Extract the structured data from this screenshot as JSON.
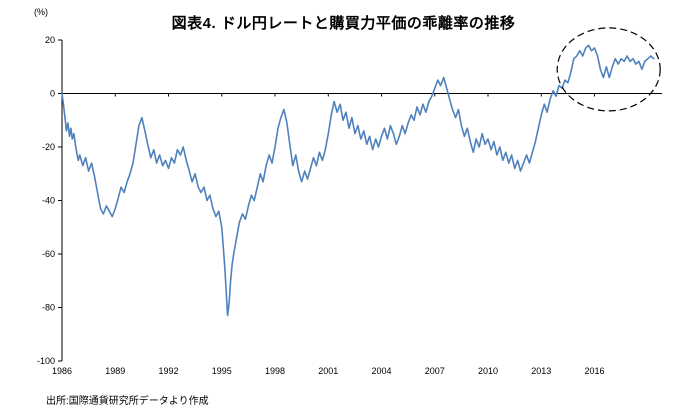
{
  "title": "図表4. ドル円レートと購買力平価の乖離率の推移",
  "y_axis_unit": "(%)",
  "source": "出所:国際通貨研究所データより作成",
  "chart_data": {
    "type": "line",
    "title": "図表4. ドル円レートと購買力平価の乖離率の推移",
    "series_name": "ドル円レートと購買力平価の乖離率",
    "ylabel": "(%)",
    "xlabel": "",
    "ylim": [
      -100,
      20
    ],
    "xlim": [
      1986,
      2019.8
    ],
    "y_ticks": [
      20,
      0,
      -20,
      -40,
      -60,
      -80,
      -100
    ],
    "x_ticks": [
      1986,
      1989,
      1992,
      1995,
      1998,
      2001,
      2004,
      2007,
      2010,
      2013,
      2016
    ],
    "grid": false,
    "legend": "none",
    "line_color": "#4F81BD",
    "annotation": {
      "type": "dashed-ellipse",
      "cx": 2016.8,
      "cy": 9,
      "rx": 2.9,
      "ry": 15.5
    },
    "points": [
      [
        1986.0,
        0
      ],
      [
        1986.08,
        -4
      ],
      [
        1986.17,
        -9
      ],
      [
        1986.25,
        -14
      ],
      [
        1986.33,
        -11
      ],
      [
        1986.42,
        -16
      ],
      [
        1986.5,
        -13
      ],
      [
        1986.58,
        -17
      ],
      [
        1986.67,
        -15
      ],
      [
        1986.75,
        -19
      ],
      [
        1986.83,
        -22
      ],
      [
        1986.92,
        -25
      ],
      [
        1987.0,
        -23
      ],
      [
        1987.17,
        -27
      ],
      [
        1987.33,
        -24
      ],
      [
        1987.5,
        -29
      ],
      [
        1987.67,
        -26
      ],
      [
        1987.83,
        -31
      ],
      [
        1988.0,
        -37
      ],
      [
        1988.17,
        -43
      ],
      [
        1988.33,
        -45
      ],
      [
        1988.5,
        -42
      ],
      [
        1988.67,
        -44
      ],
      [
        1988.83,
        -46
      ],
      [
        1989.0,
        -43
      ],
      [
        1989.17,
        -39
      ],
      [
        1989.33,
        -35
      ],
      [
        1989.5,
        -37
      ],
      [
        1989.67,
        -33
      ],
      [
        1989.83,
        -30
      ],
      [
        1990.0,
        -26
      ],
      [
        1990.17,
        -19
      ],
      [
        1990.33,
        -12
      ],
      [
        1990.5,
        -9
      ],
      [
        1990.67,
        -14
      ],
      [
        1990.83,
        -19
      ],
      [
        1991.0,
        -24
      ],
      [
        1991.17,
        -21
      ],
      [
        1991.33,
        -26
      ],
      [
        1991.5,
        -23
      ],
      [
        1991.67,
        -27
      ],
      [
        1991.83,
        -25
      ],
      [
        1992.0,
        -28
      ],
      [
        1992.17,
        -24
      ],
      [
        1992.33,
        -26
      ],
      [
        1992.5,
        -21
      ],
      [
        1992.67,
        -23
      ],
      [
        1992.83,
        -20
      ],
      [
        1993.0,
        -25
      ],
      [
        1993.17,
        -29
      ],
      [
        1993.33,
        -33
      ],
      [
        1993.5,
        -30
      ],
      [
        1993.67,
        -35
      ],
      [
        1993.83,
        -37
      ],
      [
        1994.0,
        -35
      ],
      [
        1994.17,
        -40
      ],
      [
        1994.33,
        -38
      ],
      [
        1994.5,
        -43
      ],
      [
        1994.67,
        -46
      ],
      [
        1994.83,
        -44
      ],
      [
        1995.0,
        -50
      ],
      [
        1995.08,
        -57
      ],
      [
        1995.17,
        -65
      ],
      [
        1995.25,
        -74
      ],
      [
        1995.33,
        -83
      ],
      [
        1995.42,
        -78
      ],
      [
        1995.5,
        -70
      ],
      [
        1995.58,
        -64
      ],
      [
        1995.67,
        -60
      ],
      [
        1995.83,
        -54
      ],
      [
        1996.0,
        -48
      ],
      [
        1996.17,
        -45
      ],
      [
        1996.33,
        -47
      ],
      [
        1996.5,
        -42
      ],
      [
        1996.67,
        -38
      ],
      [
        1996.83,
        -40
      ],
      [
        1997.0,
        -35
      ],
      [
        1997.17,
        -30
      ],
      [
        1997.33,
        -33
      ],
      [
        1997.5,
        -27
      ],
      [
        1997.67,
        -23
      ],
      [
        1997.83,
        -26
      ],
      [
        1998.0,
        -20
      ],
      [
        1998.17,
        -13
      ],
      [
        1998.33,
        -9
      ],
      [
        1998.5,
        -6
      ],
      [
        1998.67,
        -11
      ],
      [
        1998.83,
        -19
      ],
      [
        1999.0,
        -27
      ],
      [
        1999.17,
        -23
      ],
      [
        1999.33,
        -29
      ],
      [
        1999.5,
        -33
      ],
      [
        1999.67,
        -29
      ],
      [
        1999.83,
        -32
      ],
      [
        2000.0,
        -28
      ],
      [
        2000.17,
        -24
      ],
      [
        2000.33,
        -27
      ],
      [
        2000.5,
        -22
      ],
      [
        2000.67,
        -25
      ],
      [
        2000.83,
        -21
      ],
      [
        2001.0,
        -15
      ],
      [
        2001.17,
        -8
      ],
      [
        2001.33,
        -3
      ],
      [
        2001.5,
        -7
      ],
      [
        2001.67,
        -4
      ],
      [
        2001.83,
        -10
      ],
      [
        2002.0,
        -7
      ],
      [
        2002.17,
        -13
      ],
      [
        2002.33,
        -9
      ],
      [
        2002.5,
        -15
      ],
      [
        2002.67,
        -12
      ],
      [
        2002.83,
        -17
      ],
      [
        2003.0,
        -14
      ],
      [
        2003.17,
        -19
      ],
      [
        2003.33,
        -16
      ],
      [
        2003.5,
        -21
      ],
      [
        2003.67,
        -17
      ],
      [
        2003.83,
        -20
      ],
      [
        2004.0,
        -16
      ],
      [
        2004.17,
        -13
      ],
      [
        2004.33,
        -17
      ],
      [
        2004.5,
        -12
      ],
      [
        2004.67,
        -15
      ],
      [
        2004.83,
        -19
      ],
      [
        2005.0,
        -16
      ],
      [
        2005.17,
        -12
      ],
      [
        2005.33,
        -15
      ],
      [
        2005.5,
        -11
      ],
      [
        2005.67,
        -8
      ],
      [
        2005.83,
        -10
      ],
      [
        2006.0,
        -5
      ],
      [
        2006.17,
        -8
      ],
      [
        2006.33,
        -4
      ],
      [
        2006.5,
        -7
      ],
      [
        2006.67,
        -3
      ],
      [
        2006.83,
        -1
      ],
      [
        2007.0,
        2
      ],
      [
        2007.17,
        5
      ],
      [
        2007.33,
        3
      ],
      [
        2007.5,
        6
      ],
      [
        2007.67,
        2
      ],
      [
        2007.83,
        -2
      ],
      [
        2008.0,
        -6
      ],
      [
        2008.17,
        -9
      ],
      [
        2008.33,
        -6
      ],
      [
        2008.5,
        -12
      ],
      [
        2008.67,
        -16
      ],
      [
        2008.83,
        -13
      ],
      [
        2009.0,
        -18
      ],
      [
        2009.17,
        -22
      ],
      [
        2009.33,
        -17
      ],
      [
        2009.5,
        -20
      ],
      [
        2009.67,
        -15
      ],
      [
        2009.83,
        -19
      ],
      [
        2010.0,
        -17
      ],
      [
        2010.17,
        -21
      ],
      [
        2010.33,
        -18
      ],
      [
        2010.5,
        -23
      ],
      [
        2010.67,
        -20
      ],
      [
        2010.83,
        -25
      ],
      [
        2011.0,
        -22
      ],
      [
        2011.17,
        -26
      ],
      [
        2011.33,
        -23
      ],
      [
        2011.5,
        -28
      ],
      [
        2011.67,
        -25
      ],
      [
        2011.83,
        -29
      ],
      [
        2012.0,
        -26
      ],
      [
        2012.17,
        -23
      ],
      [
        2012.33,
        -26
      ],
      [
        2012.5,
        -22
      ],
      [
        2012.67,
        -18
      ],
      [
        2012.83,
        -13
      ],
      [
        2013.0,
        -8
      ],
      [
        2013.17,
        -4
      ],
      [
        2013.33,
        -7
      ],
      [
        2013.5,
        -2
      ],
      [
        2013.67,
        1
      ],
      [
        2013.83,
        -1
      ],
      [
        2014.0,
        3
      ],
      [
        2014.17,
        2
      ],
      [
        2014.33,
        5
      ],
      [
        2014.5,
        4
      ],
      [
        2014.67,
        8
      ],
      [
        2014.83,
        13
      ],
      [
        2015.0,
        14
      ],
      [
        2015.17,
        16
      ],
      [
        2015.33,
        14
      ],
      [
        2015.5,
        17
      ],
      [
        2015.67,
        18
      ],
      [
        2015.83,
        16
      ],
      [
        2016.0,
        17
      ],
      [
        2016.17,
        14
      ],
      [
        2016.33,
        9
      ],
      [
        2016.5,
        6
      ],
      [
        2016.67,
        10
      ],
      [
        2016.83,
        6
      ],
      [
        2017.0,
        10
      ],
      [
        2017.17,
        13
      ],
      [
        2017.33,
        11
      ],
      [
        2017.5,
        13
      ],
      [
        2017.67,
        12
      ],
      [
        2017.83,
        14
      ],
      [
        2018.0,
        12
      ],
      [
        2018.17,
        13
      ],
      [
        2018.33,
        11
      ],
      [
        2018.5,
        12
      ],
      [
        2018.67,
        9
      ],
      [
        2018.83,
        12
      ],
      [
        2019.0,
        13
      ],
      [
        2019.17,
        14
      ],
      [
        2019.33,
        13
      ]
    ]
  }
}
